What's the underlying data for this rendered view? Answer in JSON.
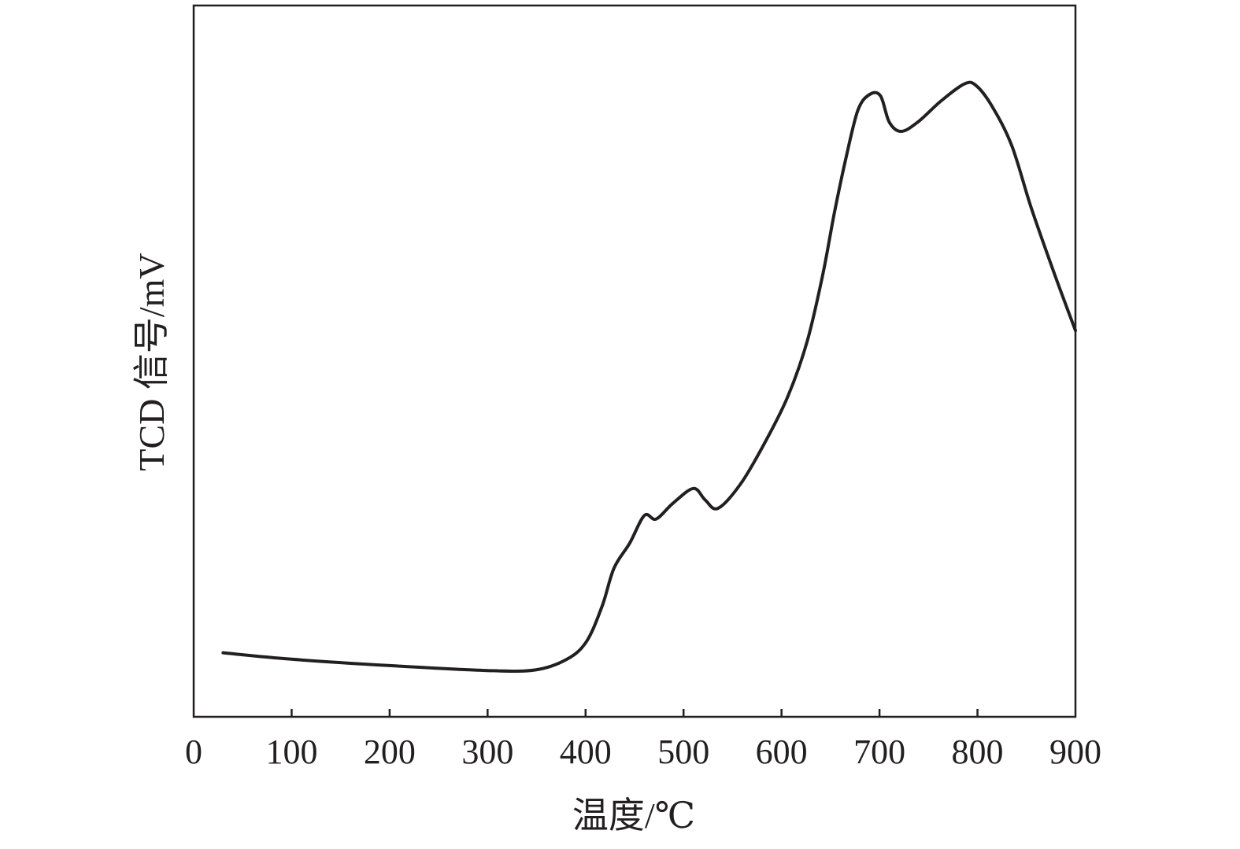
{
  "chart_data": {
    "type": "line",
    "title": "",
    "xlabel": "温度/℃",
    "ylabel": "TCD 信号/mV",
    "xlim": [
      0,
      900
    ],
    "ylim": [
      0,
      100
    ],
    "x_ticks": [
      0,
      100,
      200,
      300,
      400,
      500,
      600,
      700,
      800,
      900
    ],
    "x_tick_labels": [
      "0",
      "100",
      "200",
      "300",
      "400",
      "500",
      "600",
      "700",
      "800",
      "900"
    ],
    "y_ticks_shown": false,
    "grid": false,
    "line_color": "#231f20",
    "series": [
      {
        "x": [
          30,
          100,
          200,
          300,
          349,
          381,
          401,
          417,
          429,
          445,
          460,
          472,
          489,
          510,
          522,
          535,
          558,
          582,
          606,
          626,
          642,
          654,
          666,
          678,
          690,
          701,
          710,
          722,
          739,
          763,
          787,
          799,
          815,
          835,
          855,
          879,
          900
        ],
        "y": [
          9.0,
          8.1,
          7.2,
          6.5,
          6.6,
          8.1,
          10.6,
          15.6,
          20.9,
          24.4,
          28.3,
          27.8,
          30.0,
          32.1,
          30.5,
          29.3,
          32.7,
          38.3,
          44.9,
          52.7,
          62.1,
          70.9,
          78.7,
          85.3,
          87.5,
          87.3,
          83.6,
          82.3,
          83.6,
          86.6,
          89.0,
          88.7,
          85.8,
          80.3,
          71.5,
          62.1,
          54.3
        ]
      }
    ]
  }
}
